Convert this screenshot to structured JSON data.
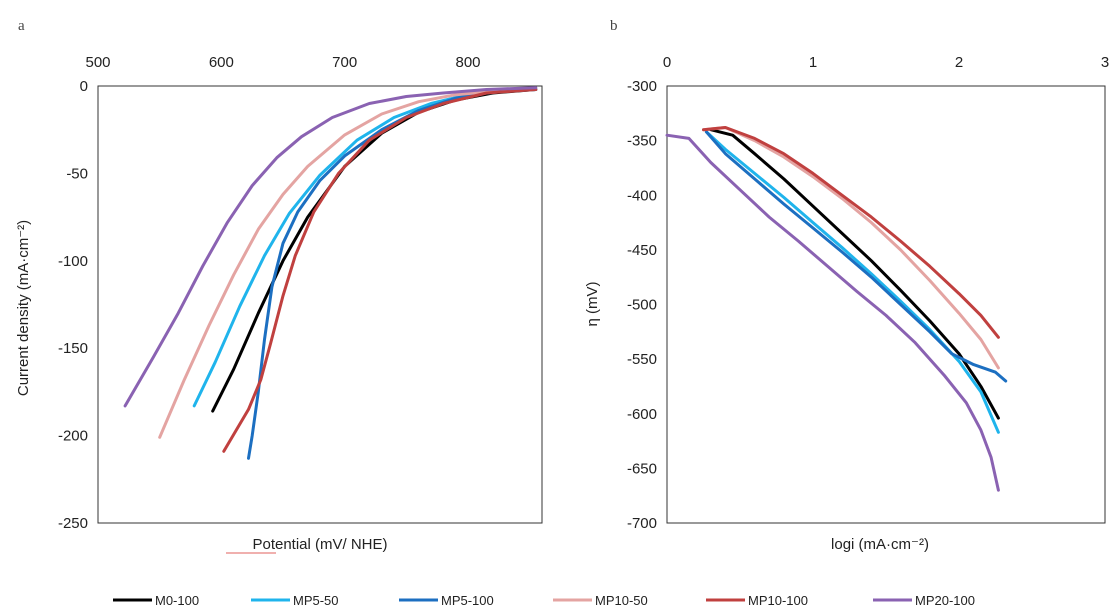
{
  "colors": {
    "M0-100": "#000000",
    "MP5-50": "#1fb4ec",
    "MP5-100": "#1c6fc1",
    "MP10-50": "#e4a4a2",
    "MP10-100": "#c0403f",
    "MP20-100": "#8a62b2"
  },
  "legend": [
    "M0-100",
    "MP5-50",
    "MP5-100",
    "MP10-50",
    "MP10-100",
    "MP20-100"
  ],
  "chart_data": [
    {
      "type": "line",
      "panel_label": "a",
      "xlabel": "Potential (mV/ NHE)",
      "ylabel": "Current density (mA·cm⁻²)",
      "xlim": [
        500,
        860
      ],
      "ylim": [
        -250,
        0
      ],
      "x_ticks": [
        500,
        600,
        700,
        800
      ],
      "y_ticks": [
        0,
        -50,
        -100,
        -150,
        -200,
        -250
      ],
      "x_axis_position": "top",
      "grid": false,
      "series": [
        {
          "name": "M0-100",
          "x": [
            593,
            610,
            630,
            650,
            670,
            700,
            730,
            760,
            790,
            820,
            855
          ],
          "y": [
            -186,
            -162,
            -130,
            -100,
            -75,
            -46,
            -27,
            -15,
            -8,
            -4,
            -2
          ]
        },
        {
          "name": "MP5-50",
          "x": [
            578,
            595,
            615,
            635,
            655,
            680,
            710,
            740,
            770,
            800,
            830,
            855
          ],
          "y": [
            -183,
            -158,
            -126,
            -97,
            -73,
            -51,
            -31,
            -18,
            -10,
            -5,
            -3,
            -2
          ]
        },
        {
          "name": "MP5-100",
          "x": [
            622,
            625,
            630,
            635,
            641,
            650,
            662,
            680,
            700,
            730,
            760,
            790,
            820,
            855
          ],
          "y": [
            -213,
            -200,
            -175,
            -145,
            -115,
            -90,
            -72,
            -54,
            -40,
            -25,
            -14,
            -7,
            -3,
            -2
          ]
        },
        {
          "name": "MP10-50",
          "x": [
            550,
            570,
            590,
            610,
            630,
            650,
            670,
            700,
            730,
            760,
            790,
            820,
            855
          ],
          "y": [
            -201,
            -168,
            -137,
            -108,
            -82,
            -62,
            -46,
            -28,
            -16,
            -9,
            -5,
            -3,
            -2
          ]
        },
        {
          "name": "MP10-100",
          "x": [
            602,
            612,
            622,
            632,
            640,
            650,
            660,
            675,
            695,
            720,
            750,
            780,
            815,
            855
          ],
          "y": [
            -209,
            -197,
            -185,
            -168,
            -147,
            -120,
            -97,
            -72,
            -50,
            -31,
            -18,
            -10,
            -4,
            -2
          ]
        },
        {
          "name": "MP20-100",
          "x": [
            522,
            545,
            565,
            585,
            605,
            625,
            645,
            665,
            690,
            720,
            750,
            780,
            815,
            855
          ],
          "y": [
            -183,
            -155,
            -130,
            -103,
            -78,
            -57,
            -41,
            -29,
            -18,
            -10,
            -6,
            -4,
            -2,
            -1
          ]
        }
      ]
    },
    {
      "type": "line",
      "panel_label": "b",
      "xlabel": "logi (mA·cm⁻²)",
      "ylabel": "η (mV)",
      "xlim": [
        0,
        3
      ],
      "ylim": [
        -700,
        -300
      ],
      "x_ticks": [
        0,
        1,
        2,
        3
      ],
      "y_ticks": [
        -300,
        -350,
        -400,
        -450,
        -500,
        -550,
        -600,
        -650,
        -700
      ],
      "x_axis_position": "top",
      "grid": false,
      "series": [
        {
          "name": "M0-100",
          "x": [
            0.3,
            0.45,
            0.6,
            0.8,
            1.0,
            1.2,
            1.4,
            1.6,
            1.8,
            2.0,
            2.15,
            2.27
          ],
          "y": [
            -340,
            -345,
            -362,
            -385,
            -410,
            -435,
            -460,
            -487,
            -515,
            -545,
            -575,
            -604
          ]
        },
        {
          "name": "MP5-50",
          "x": [
            0.27,
            0.4,
            0.6,
            0.8,
            1.0,
            1.2,
            1.4,
            1.6,
            1.8,
            2.0,
            2.15,
            2.27
          ],
          "y": [
            -342,
            -358,
            -380,
            -402,
            -425,
            -448,
            -472,
            -497,
            -523,
            -552,
            -580,
            -617
          ]
        },
        {
          "name": "MP5-100",
          "x": [
            0.27,
            0.4,
            0.6,
            0.8,
            1.0,
            1.2,
            1.4,
            1.6,
            1.8,
            1.95,
            2.1,
            2.25,
            2.32
          ],
          "y": [
            -342,
            -362,
            -385,
            -408,
            -430,
            -452,
            -475,
            -500,
            -525,
            -545,
            -555,
            -562,
            -570
          ]
        },
        {
          "name": "MP10-50",
          "x": [
            0.25,
            0.4,
            0.6,
            0.8,
            1.0,
            1.2,
            1.4,
            1.6,
            1.8,
            2.0,
            2.15,
            2.27
          ],
          "y": [
            -340,
            -338,
            -350,
            -365,
            -383,
            -403,
            -425,
            -450,
            -478,
            -508,
            -532,
            -558
          ]
        },
        {
          "name": "MP10-100",
          "x": [
            0.25,
            0.4,
            0.6,
            0.8,
            1.0,
            1.2,
            1.4,
            1.6,
            1.8,
            2.0,
            2.15,
            2.27
          ],
          "y": [
            -340,
            -338,
            -348,
            -362,
            -380,
            -400,
            -420,
            -442,
            -465,
            -490,
            -510,
            -530
          ]
        },
        {
          "name": "MP20-100",
          "x": [
            0.0,
            0.15,
            0.3,
            0.5,
            0.7,
            0.9,
            1.1,
            1.3,
            1.5,
            1.7,
            1.9,
            2.05,
            2.15,
            2.22,
            2.27
          ],
          "y": [
            -345,
            -348,
            -370,
            -395,
            -420,
            -442,
            -465,
            -488,
            -510,
            -535,
            -565,
            -590,
            -615,
            -640,
            -670
          ]
        }
      ]
    }
  ]
}
